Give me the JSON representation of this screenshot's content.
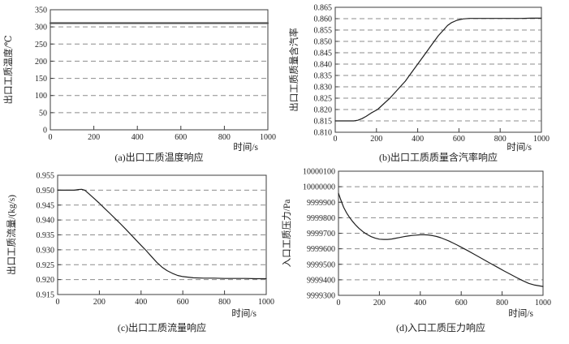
{
  "figure": {
    "background": "#ffffff",
    "axis_color": "#3c3c3c",
    "grid_color": "#8c8c8c",
    "line_color": "#1f1f1f",
    "flat_line_color": "#555555"
  },
  "chart_data": [
    {
      "id": "a",
      "type": "line",
      "caption": "(a)出口工质温度响应",
      "ylabel": "出口工质温度/℃",
      "xlabel": "时间/s",
      "xlim": [
        0,
        1000
      ],
      "ylim": [
        0,
        350
      ],
      "xticks": [
        0,
        200,
        400,
        600,
        800,
        1000
      ],
      "xtick_labels": [
        "0",
        "200",
        "400",
        "600",
        "800",
        "1000"
      ],
      "yticks": [
        0,
        50,
        100,
        150,
        200,
        250,
        300,
        350
      ],
      "ytick_labels": [
        "0",
        "50",
        "100",
        "150",
        "200",
        "250",
        "300",
        "350"
      ],
      "grid": "dashed-horizontal",
      "legend": "none",
      "series": [
        {
          "name": "出口工质温度",
          "points": [
            [
              0,
              311
            ],
            [
              1000,
              311
            ]
          ]
        }
      ]
    },
    {
      "id": "b",
      "type": "line",
      "caption": "(b)出口工质质量含汽率响应",
      "ylabel": "出口工质质量含汽率",
      "xlabel": "时间/s",
      "xlim": [
        0,
        1000
      ],
      "ylim": [
        0.81,
        0.865
      ],
      "xticks": [
        0,
        200,
        400,
        600,
        800,
        1000
      ],
      "xtick_labels": [
        "0",
        "200",
        "400",
        "600",
        "800",
        "1000"
      ],
      "yticks": [
        0.81,
        0.815,
        0.82,
        0.825,
        0.83,
        0.835,
        0.84,
        0.845,
        0.85,
        0.855,
        0.86,
        0.865
      ],
      "ytick_labels": [
        "0.810",
        "0.815",
        "0.820",
        "0.825",
        "0.830",
        "0.835",
        "0.840",
        "0.845",
        "0.850",
        "0.855",
        "0.860",
        "0.865"
      ],
      "grid": "dashed-horizontal",
      "legend": "none",
      "series": [
        {
          "name": "出口工质质量含汽率",
          "points": [
            [
              0,
              0.815
            ],
            [
              90,
              0.815
            ],
            [
              110,
              0.8153
            ],
            [
              130,
              0.816
            ],
            [
              150,
              0.817
            ],
            [
              175,
              0.8185
            ],
            [
              205,
              0.82
            ],
            [
              235,
              0.8225
            ],
            [
              265,
              0.825
            ],
            [
              290,
              0.8275
            ],
            [
              315,
              0.83
            ],
            [
              340,
              0.8325
            ],
            [
              360,
              0.835
            ],
            [
              380,
              0.8375
            ],
            [
              400,
              0.84
            ],
            [
              420,
              0.8425
            ],
            [
              440,
              0.845
            ],
            [
              460,
              0.8475
            ],
            [
              480,
              0.85
            ],
            [
              500,
              0.8525
            ],
            [
              525,
              0.855
            ],
            [
              545,
              0.857
            ],
            [
              565,
              0.8583
            ],
            [
              590,
              0.8593
            ],
            [
              620,
              0.8599
            ],
            [
              650,
              0.8601
            ],
            [
              700,
              0.8601
            ],
            [
              750,
              0.8601
            ],
            [
              800,
              0.8601
            ],
            [
              850,
              0.8601
            ],
            [
              900,
              0.8601
            ],
            [
              950,
              0.8602
            ],
            [
              1000,
              0.8602
            ]
          ]
        }
      ]
    },
    {
      "id": "c",
      "type": "line",
      "caption": "(c)出口工质流量响应",
      "ylabel": "出口工质流量/(kg/s)",
      "xlabel": "时间/s",
      "xlim": [
        0,
        1000
      ],
      "ylim": [
        0.915,
        0.955
      ],
      "xticks": [
        0,
        200,
        400,
        600,
        800,
        1000
      ],
      "xtick_labels": [
        "0",
        "200",
        "400",
        "600",
        "800",
        "1000"
      ],
      "yticks": [
        0.915,
        0.92,
        0.925,
        0.93,
        0.935,
        0.94,
        0.945,
        0.95,
        0.955
      ],
      "ytick_labels": [
        "0.915",
        "0.920",
        "0.925",
        "0.930",
        "0.935",
        "0.940",
        "0.945",
        "0.950",
        "0.955"
      ],
      "grid": "dashed-horizontal",
      "legend": "none",
      "series": [
        {
          "name": "出口工质流量",
          "points": [
            [
              0,
              0.95
            ],
            [
              80,
              0.95
            ],
            [
              100,
              0.9502
            ],
            [
              115,
              0.9503
            ],
            [
              130,
              0.95
            ],
            [
              150,
              0.9488
            ],
            [
              175,
              0.9472
            ],
            [
              200,
              0.9456
            ],
            [
              225,
              0.9439
            ],
            [
              250,
              0.9422
            ],
            [
              275,
              0.9405
            ],
            [
              300,
              0.9388
            ],
            [
              325,
              0.937
            ],
            [
              350,
              0.9352
            ],
            [
              375,
              0.9333
            ],
            [
              400,
              0.9315
            ],
            [
              425,
              0.9297
            ],
            [
              450,
              0.9277
            ],
            [
              475,
              0.9258
            ],
            [
              500,
              0.9242
            ],
            [
              525,
              0.923
            ],
            [
              550,
              0.9221
            ],
            [
              575,
              0.9214
            ],
            [
              600,
              0.921
            ],
            [
              650,
              0.9206
            ],
            [
              700,
              0.9205
            ],
            [
              750,
              0.9205
            ],
            [
              800,
              0.9204
            ],
            [
              850,
              0.9204
            ],
            [
              900,
              0.9204
            ],
            [
              950,
              0.9203
            ],
            [
              1000,
              0.9203
            ]
          ]
        }
      ]
    },
    {
      "id": "d",
      "type": "line",
      "caption": "(d)入口工质压力响应",
      "ylabel": "入口工质压力/Pa",
      "xlabel": "时间/s",
      "xlim": [
        0,
        1000
      ],
      "ylim": [
        9999300,
        10000100
      ],
      "xticks": [
        0,
        200,
        400,
        600,
        800,
        1000
      ],
      "xtick_labels": [
        "0",
        "200",
        "400",
        "600",
        "800",
        "1000"
      ],
      "yticks": [
        9999300,
        9999400,
        9999500,
        9999600,
        9999700,
        9999800,
        9999900,
        10000000,
        10000100
      ],
      "ytick_labels": [
        "9999300",
        "9999400",
        "9999500",
        "9999600",
        "9999700",
        "9999800",
        "9999900",
        "10000000",
        "10000100"
      ],
      "grid": "dashed-horizontal",
      "legend": "none",
      "series": [
        {
          "name": "入口工质压力",
          "points": [
            [
              0,
              9999958
            ],
            [
              10,
              9999920
            ],
            [
              25,
              9999868
            ],
            [
              40,
              9999830
            ],
            [
              55,
              9999800
            ],
            [
              70,
              9999775
            ],
            [
              85,
              9999752
            ],
            [
              100,
              9999732
            ],
            [
              120,
              9999710
            ],
            [
              140,
              9999692
            ],
            [
              160,
              9999678
            ],
            [
              180,
              9999668
            ],
            [
              200,
              9999662
            ],
            [
              220,
              9999660
            ],
            [
              240,
              9999660
            ],
            [
              260,
              9999663
            ],
            [
              280,
              9999668
            ],
            [
              300,
              9999673
            ],
            [
              320,
              9999678
            ],
            [
              340,
              9999682
            ],
            [
              360,
              9999686
            ],
            [
              380,
              9999688
            ],
            [
              400,
              9999690
            ],
            [
              420,
              9999690
            ],
            [
              440,
              9999689
            ],
            [
              460,
              9999685
            ],
            [
              480,
              9999679
            ],
            [
              500,
              9999671
            ],
            [
              520,
              9999661
            ],
            [
              540,
              9999650
            ],
            [
              560,
              9999637
            ],
            [
              580,
              9999624
            ],
            [
              600,
              9999610
            ],
            [
              630,
              9999589
            ],
            [
              660,
              9999567
            ],
            [
              690,
              9999545
            ],
            [
              720,
              9999523
            ],
            [
              750,
              9999501
            ],
            [
              780,
              9999479
            ],
            [
              810,
              9999457
            ],
            [
              840,
              9999436
            ],
            [
              870,
              9999415
            ],
            [
              900,
              9999395
            ],
            [
              930,
              9999377
            ],
            [
              960,
              9999366
            ],
            [
              1000,
              9999357
            ]
          ]
        }
      ]
    }
  ]
}
